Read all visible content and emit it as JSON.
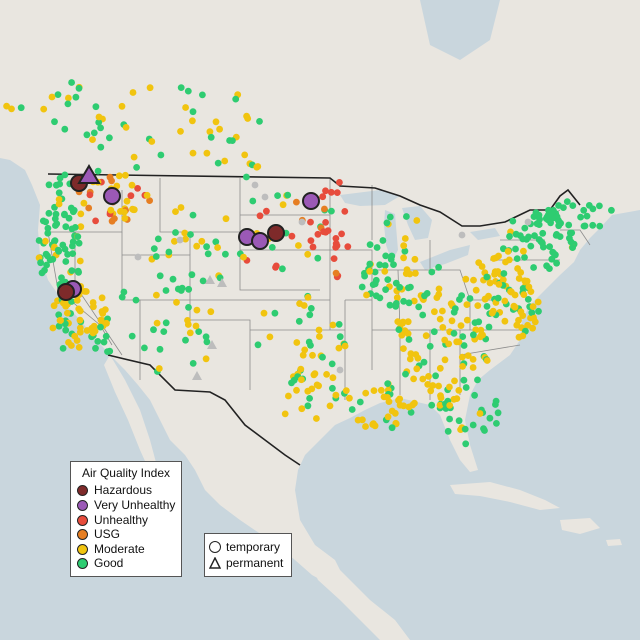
{
  "legend": {
    "title": "Air Quality Index",
    "categories": [
      {
        "label": "Hazardous",
        "color": "#7e2a2a"
      },
      {
        "label": "Very Unhealthy",
        "color": "#9b59b6"
      },
      {
        "label": "Unhealthy",
        "color": "#e74c3c"
      },
      {
        "label": "USG",
        "color": "#e67e22"
      },
      {
        "label": "Moderate",
        "color": "#f1c40f"
      },
      {
        "label": "Good",
        "color": "#2ecc71"
      }
    ]
  },
  "type_legend": {
    "temporary": "temporary",
    "permanent": "permanent"
  },
  "colors": {
    "ocean": "#c9d6dd",
    "land": "#e9e6e0",
    "us_border": "#222222",
    "state_border": "#8c8c8c",
    "no_data": "#bdbdbd"
  }
}
